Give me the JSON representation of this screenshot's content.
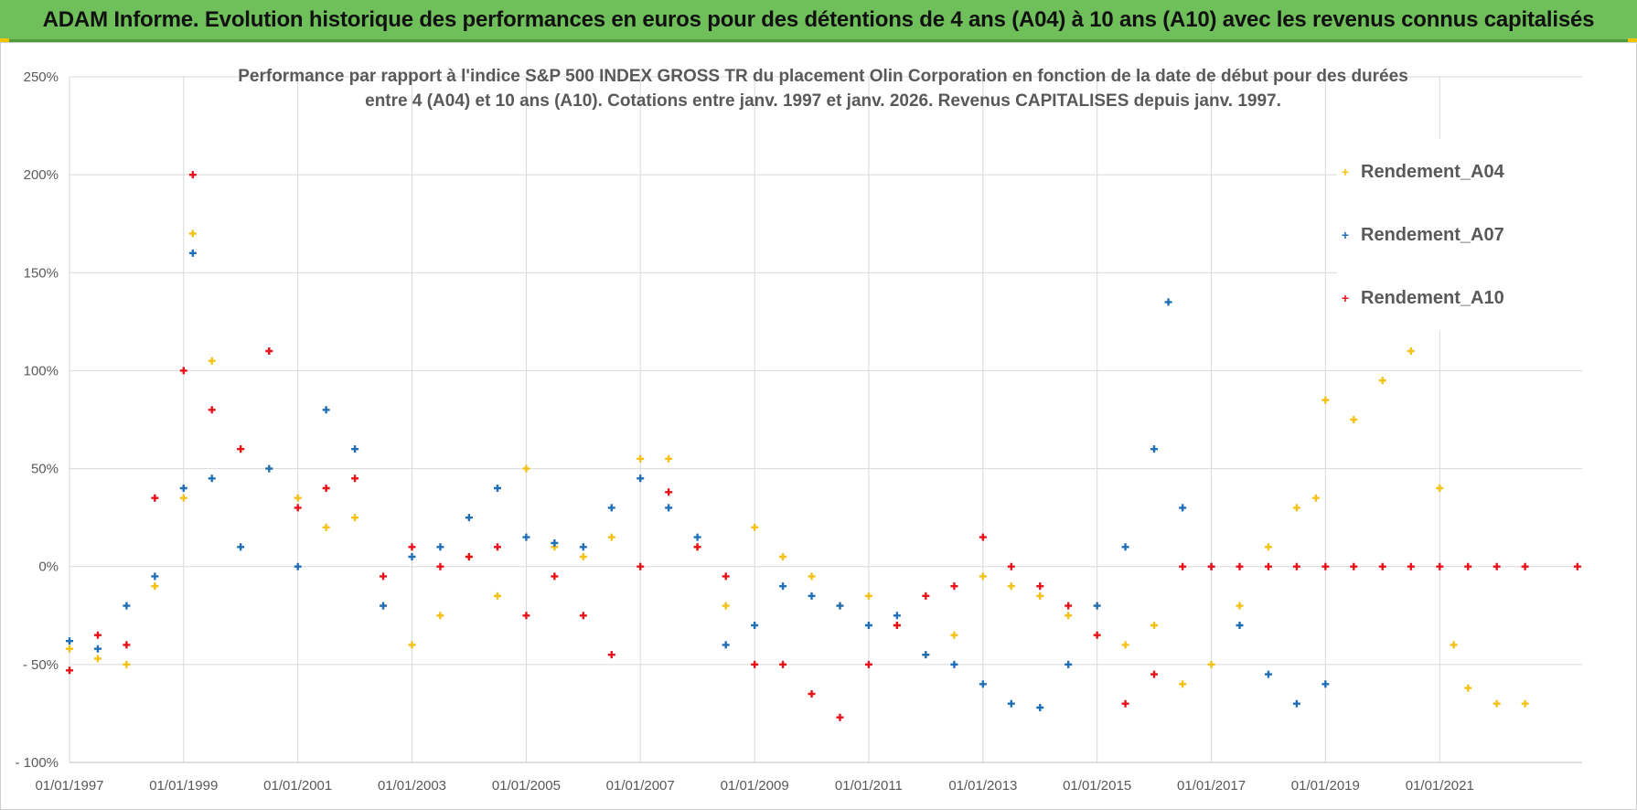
{
  "banner": {
    "title": "ADAM Informe. Evolution historique des performances en euros pour des détentions de 4 ans (A04) à 10 ans (A10) avec les revenus connus capitalisés"
  },
  "colors": {
    "banner_bg": "#6fbf5a",
    "A04": "#f5c115",
    "A07": "#1f6fb8",
    "A10": "#e8111a",
    "grid": "#d9d9d9",
    "text": "#595959"
  },
  "chart_data": {
    "type": "scatter",
    "title_line1": "Performance par rapport à l'indice S&P 500 INDEX GROSS TR  du placement Olin Corporation en fonction de la date de début pour des durées",
    "title_line2": "entre 4 (A04) et 10 ans (A10).  Cotations entre janv. 1997 et janv. 2026. Revenus CAPITALISES depuis janv. 1997.",
    "xlabel": "",
    "ylabel": "",
    "x_range": [
      "1997-01-01",
      "2023-07-01"
    ],
    "ylim": [
      -1.0,
      2.5
    ],
    "y_ticks": [
      -1.0,
      -0.5,
      0,
      0.5,
      1.0,
      1.5,
      2.0,
      2.5
    ],
    "y_tick_labels": [
      "- 100%",
      "- 50%",
      "0%",
      "50%",
      "100%",
      "150%",
      "200%",
      "250%"
    ],
    "x_ticks": [
      "1997-01-01",
      "1999-01-01",
      "2001-01-01",
      "2003-01-01",
      "2005-01-01",
      "2007-01-01",
      "2009-01-01",
      "2011-01-01",
      "2013-01-01",
      "2015-01-01",
      "2017-01-01",
      "2019-01-01",
      "2021-01-01"
    ],
    "x_tick_labels": [
      "01/01/1997",
      "01/01/1999",
      "01/01/2001",
      "01/01/2003",
      "01/01/2005",
      "01/01/2007",
      "01/01/2009",
      "01/01/2011",
      "01/01/2013",
      "01/01/2015",
      "01/01/2017",
      "01/01/2019",
      "01/01/2021"
    ],
    "grid": true,
    "legend_position": "top-right",
    "marker": "+",
    "series": [
      {
        "name": "Rendement_A04",
        "x": [
          "1997-01-01",
          "1997-07-01",
          "1998-01-01",
          "1998-07-01",
          "1999-01-01",
          "1999-03-01",
          "1999-07-01",
          "2000-01-01",
          "2000-07-01",
          "2001-01-01",
          "2001-07-01",
          "2002-01-01",
          "2002-07-01",
          "2003-01-01",
          "2003-07-01",
          "2004-01-01",
          "2004-07-01",
          "2005-01-01",
          "2005-07-01",
          "2006-01-01",
          "2006-07-01",
          "2007-01-01",
          "2007-07-01",
          "2008-01-01",
          "2008-07-01",
          "2009-01-01",
          "2009-07-01",
          "2010-01-01",
          "2010-07-01",
          "2011-01-01",
          "2011-07-01",
          "2012-01-01",
          "2012-07-01",
          "2013-01-01",
          "2013-07-01",
          "2014-01-01",
          "2014-07-01",
          "2015-01-01",
          "2015-07-01",
          "2016-01-01",
          "2016-07-01",
          "2017-01-01",
          "2017-07-01",
          "2018-01-01",
          "2018-07-01",
          "2018-11-01",
          "2019-01-01",
          "2019-07-01",
          "2020-01-01",
          "2020-07-01",
          "2021-01-01",
          "2021-04-01",
          "2021-07-01",
          "2022-01-01",
          "2022-07-01"
        ],
        "values": [
          -0.42,
          -0.47,
          -0.5,
          -0.1,
          0.35,
          1.7,
          1.05,
          0.6,
          0.5,
          0.35,
          0.2,
          0.25,
          -0.2,
          -0.4,
          -0.25,
          0.05,
          -0.15,
          0.5,
          0.1,
          0.05,
          0.15,
          0.55,
          0.55,
          0.1,
          -0.2,
          0.2,
          0.05,
          -0.05,
          -0.2,
          -0.15,
          -0.3,
          -0.45,
          -0.35,
          -0.05,
          -0.1,
          -0.15,
          -0.25,
          -0.2,
          -0.4,
          -0.3,
          -0.6,
          -0.5,
          -0.2,
          0.1,
          0.3,
          0.35,
          0.85,
          0.75,
          0.95,
          1.1,
          0.4,
          -0.4,
          -0.62,
          -0.7,
          -0.7
        ]
      },
      {
        "name": "Rendement_A07",
        "x": [
          "1997-01-01",
          "1997-07-01",
          "1998-01-01",
          "1998-07-01",
          "1999-01-01",
          "1999-03-01",
          "1999-07-01",
          "2000-01-01",
          "2000-07-01",
          "2001-01-01",
          "2001-07-01",
          "2002-01-01",
          "2002-07-01",
          "2003-01-01",
          "2003-07-01",
          "2004-01-01",
          "2004-07-01",
          "2005-01-01",
          "2005-07-01",
          "2006-01-01",
          "2006-07-01",
          "2007-01-01",
          "2007-07-01",
          "2008-01-01",
          "2008-07-01",
          "2009-01-01",
          "2009-07-01",
          "2010-01-01",
          "2010-07-01",
          "2011-01-01",
          "2011-07-01",
          "2012-01-01",
          "2012-07-01",
          "2013-01-01",
          "2013-07-01",
          "2014-01-01",
          "2014-07-01",
          "2015-01-01",
          "2015-07-01",
          "2016-01-01",
          "2016-04-01",
          "2016-07-01",
          "2017-01-01",
          "2017-07-01",
          "2018-01-01",
          "2018-07-01",
          "2019-01-01"
        ],
        "values": [
          -0.38,
          -0.42,
          -0.2,
          -0.05,
          0.4,
          1.6,
          0.45,
          0.1,
          0.5,
          0.0,
          0.8,
          0.6,
          -0.2,
          0.05,
          0.1,
          0.25,
          0.4,
          0.15,
          0.12,
          0.1,
          0.3,
          0.45,
          0.3,
          0.15,
          -0.4,
          -0.3,
          -0.1,
          -0.15,
          -0.2,
          -0.3,
          -0.25,
          -0.45,
          -0.5,
          -0.6,
          -0.7,
          -0.72,
          -0.5,
          -0.2,
          0.1,
          0.6,
          1.35,
          0.3,
          0.0,
          -0.3,
          -0.55,
          -0.7,
          -0.6
        ]
      },
      {
        "name": "Rendement_A10",
        "x": [
          "1997-01-01",
          "1997-07-01",
          "1998-01-01",
          "1998-07-01",
          "1999-01-01",
          "1999-03-01",
          "1999-07-01",
          "2000-01-01",
          "2000-07-01",
          "2001-01-01",
          "2001-07-01",
          "2002-01-01",
          "2002-07-01",
          "2003-01-01",
          "2003-07-01",
          "2004-01-01",
          "2004-07-01",
          "2005-01-01",
          "2005-07-01",
          "2006-01-01",
          "2006-07-01",
          "2007-01-01",
          "2007-07-01",
          "2008-01-01",
          "2008-07-01",
          "2009-01-01",
          "2009-07-01",
          "2010-01-01",
          "2010-07-01",
          "2011-01-01",
          "2011-07-01",
          "2012-01-01",
          "2012-07-01",
          "2013-01-01",
          "2013-07-01",
          "2014-01-01",
          "2014-07-01",
          "2015-01-01",
          "2015-07-01",
          "2016-01-01",
          "2016-07-01",
          "2017-01-01",
          "2017-07-01",
          "2018-01-01",
          "2018-07-01",
          "2019-01-01",
          "2019-07-01",
          "2020-01-01",
          "2020-07-01",
          "2021-01-01",
          "2021-07-01",
          "2022-01-01",
          "2022-07-01",
          "2023-06-01"
        ],
        "values": [
          -0.53,
          -0.35,
          -0.4,
          0.35,
          1.0,
          2.0,
          0.8,
          0.6,
          1.1,
          0.3,
          0.4,
          0.45,
          -0.05,
          0.1,
          0.0,
          0.05,
          0.1,
          -0.25,
          -0.05,
          -0.25,
          -0.45,
          0.0,
          0.38,
          0.1,
          -0.05,
          -0.5,
          -0.5,
          -0.65,
          -0.77,
          -0.5,
          -0.3,
          -0.15,
          -0.1,
          0.15,
          0.0,
          -0.1,
          -0.2,
          -0.35,
          -0.7,
          -0.55,
          0.0,
          0.0,
          0.0,
          0.0,
          0.0,
          0.0,
          0.0,
          0.0,
          0.0,
          0.0,
          0.0,
          0.0,
          0.0,
          0.0
        ]
      }
    ]
  }
}
